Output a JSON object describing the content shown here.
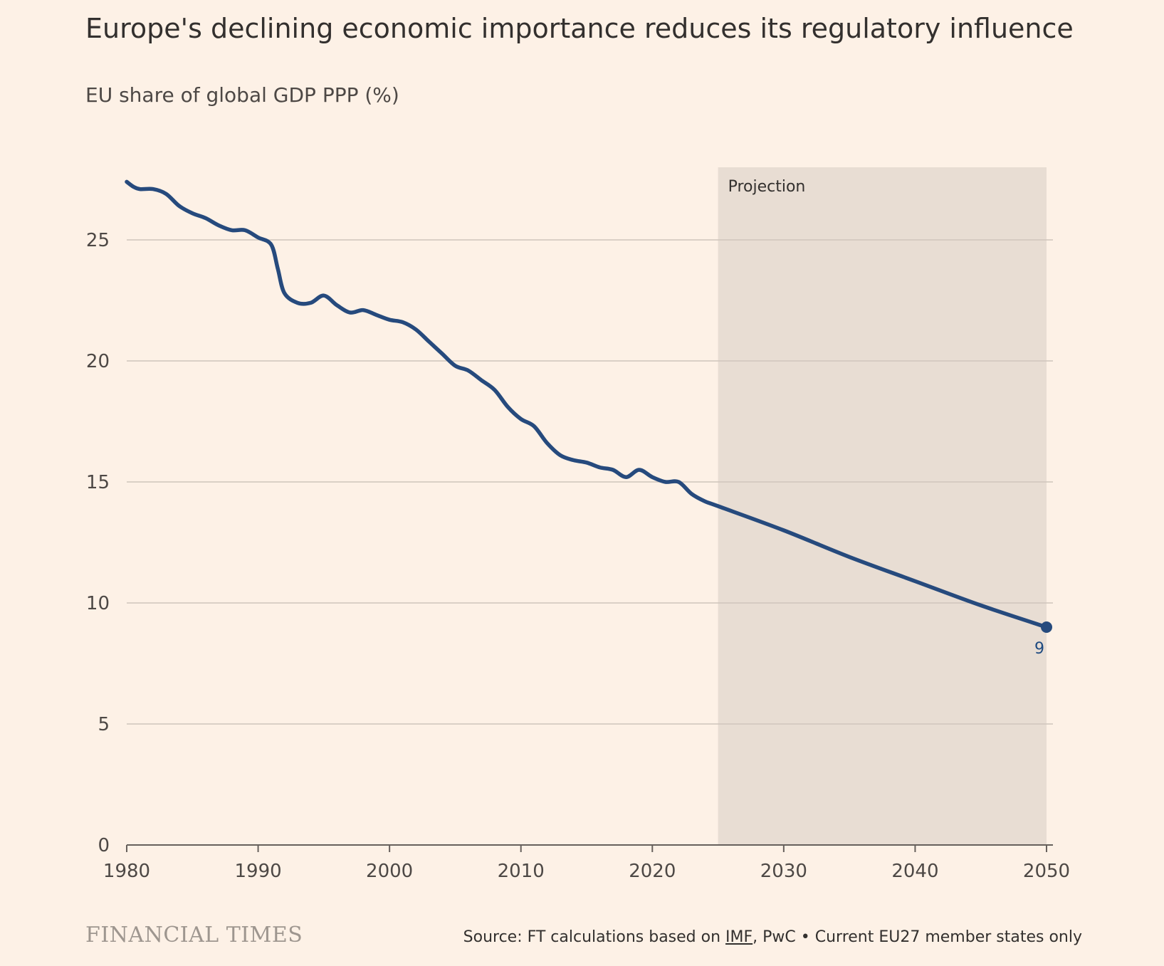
{
  "title": "Europe's declining economic importance reduces its regulatory influence",
  "subtitle": "EU share of global GDP PPP (%)",
  "brand": "FINANCIAL TIMES",
  "source": {
    "prefix": "Source: FT calculations based on ",
    "imf": "IMF",
    "suffix": ", PwC • Current EU27 member states only"
  },
  "colors": {
    "background": "#fdf1e6",
    "line": "#264a7d",
    "projection_shade": "#e8ddd3",
    "gridline": "#cfc5bc"
  },
  "chart_data": {
    "type": "line",
    "title": "Europe's declining economic importance reduces its regulatory influence",
    "ylabel": "EU share of global GDP PPP (%)",
    "xlim": [
      1980,
      2050
    ],
    "ylim": [
      0,
      28
    ],
    "y_ticks": [
      0,
      5,
      10,
      15,
      20,
      25
    ],
    "x_ticks": [
      1980,
      1990,
      2000,
      2010,
      2020,
      2030,
      2040,
      2050
    ],
    "grid": "horizontal",
    "projection": {
      "label": "Projection",
      "start": 2025,
      "end": 2050
    },
    "end_label": "9",
    "series": [
      {
        "x": [
          1980,
          1980.5,
          1981,
          1982,
          1983,
          1984,
          1985,
          1986,
          1987,
          1988,
          1989,
          1990,
          1991,
          1991.5,
          1992,
          1993,
          1994,
          1995,
          1996,
          1997,
          1998,
          1999,
          2000,
          2001,
          2002,
          2003,
          2004,
          2005,
          2006,
          2007,
          2008,
          2009,
          2010,
          2011,
          2012,
          2013,
          2014,
          2015,
          2016,
          2017,
          2018,
          2019,
          2020,
          2021,
          2022,
          2023,
          2024,
          2025,
          2030,
          2035,
          2040,
          2045,
          2050
        ],
        "values": [
          27.4,
          27.2,
          27.1,
          27.1,
          26.9,
          26.4,
          26.1,
          25.9,
          25.6,
          25.4,
          25.4,
          25.1,
          24.8,
          23.8,
          22.8,
          22.4,
          22.4,
          22.7,
          22.3,
          22.0,
          22.1,
          21.9,
          21.7,
          21.6,
          21.3,
          20.8,
          20.3,
          19.8,
          19.6,
          19.2,
          18.8,
          18.1,
          17.6,
          17.3,
          16.6,
          16.1,
          15.9,
          15.8,
          15.6,
          15.5,
          15.2,
          15.5,
          15.2,
          15.0,
          15.0,
          14.5,
          14.2,
          14.0,
          13.0,
          11.9,
          10.9,
          9.9,
          9.0
        ]
      }
    ]
  }
}
